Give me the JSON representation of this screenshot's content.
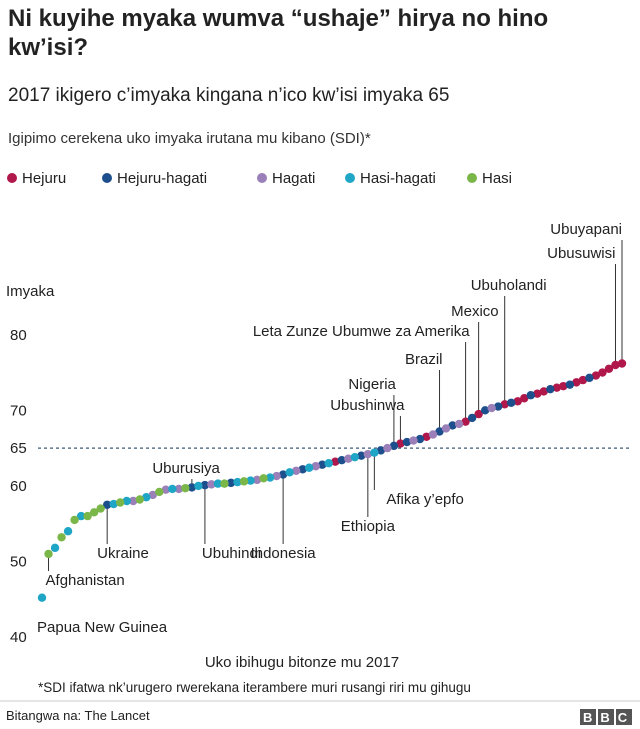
{
  "chart_data": {
    "type": "scatter",
    "title": "Ni kuyihe myaka wumva “ushaje” hirya no hino kw’isi?",
    "subtitle": "2017 ikigero c’imyaka kingana n’ico kw’isi imyaka 65",
    "legend_title": "Igipimo cerekena uko imyaka irutana mu kibano (SDI)*",
    "ylabel": "Imyaka",
    "xlabel": "Uko ibihugu bitonze mu 2017",
    "footnote": "*SDI ifatwa nk’urugero rwerekana iterambere muri rusangi riri mu gihugu",
    "source": "Bitangwa na: The Lancet",
    "logo": "BBC",
    "ylim": [
      40,
      85
    ],
    "yticks": [
      40,
      50,
      60,
      65,
      70,
      80
    ],
    "xlim": [
      1,
      90
    ],
    "refline": 65,
    "series": [
      {
        "name": "Hejuru",
        "color": "#b0174b",
        "x": [
          46,
          56,
          60,
          66,
          68,
          72,
          74,
          75,
          77,
          78,
          80,
          81,
          83,
          84,
          86,
          87,
          88,
          89,
          90
        ],
        "values": [
          63.2,
          65.6,
          66.5,
          68.5,
          69.5,
          70.8,
          71.2,
          71.6,
          72.2,
          72.5,
          73.0,
          73.2,
          73.7,
          74.0,
          74.6,
          75.0,
          75.5,
          76.0,
          76.2
        ]
      },
      {
        "name": "Hejuru-hagati",
        "color": "#1c4f8c",
        "x": [
          11,
          24,
          26,
          30,
          38,
          41,
          44,
          47,
          50,
          53,
          55,
          57,
          59,
          62,
          64,
          67,
          69,
          71,
          73,
          76,
          79,
          82,
          85
        ],
        "values": [
          57.5,
          59.8,
          60.1,
          60.4,
          61.5,
          62.2,
          62.8,
          63.4,
          64.0,
          64.7,
          65.3,
          65.8,
          66.2,
          67.2,
          68.0,
          69.0,
          70.0,
          70.5,
          71.0,
          72.0,
          72.8,
          73.4,
          74.3
        ]
      },
      {
        "name": "Hagati",
        "color": "#9a7fb8",
        "x": [
          15,
          18,
          20,
          22,
          27,
          34,
          37,
          40,
          43,
          48,
          51,
          54,
          58,
          61,
          63,
          65,
          70
        ],
        "values": [
          58.0,
          58.8,
          59.5,
          59.6,
          60.2,
          60.8,
          61.3,
          62.0,
          62.6,
          63.6,
          64.2,
          65.0,
          66.0,
          66.8,
          67.6,
          68.2,
          70.3
        ]
      },
      {
        "name": "Hasi-hagati",
        "color": "#1fa6c6",
        "x": [
          1,
          3,
          5,
          7,
          12,
          14,
          17,
          21,
          25,
          28,
          31,
          33,
          36,
          39,
          42,
          45,
          49,
          52
        ],
        "values": [
          45.2,
          51.8,
          54.0,
          56.0,
          57.6,
          58.0,
          58.5,
          59.6,
          60.0,
          60.3,
          60.5,
          60.7,
          61.1,
          61.8,
          62.4,
          63.0,
          63.8,
          64.4
        ]
      },
      {
        "name": "Hasi",
        "color": "#7ab648",
        "x": [
          2,
          4,
          6,
          8,
          9,
          10,
          13,
          16,
          19,
          23,
          29,
          32,
          35
        ],
        "values": [
          51.0,
          53.2,
          55.5,
          56.0,
          56.5,
          57.0,
          57.8,
          58.2,
          59.2,
          59.7,
          60.3,
          60.6,
          61.0
        ]
      }
    ],
    "annotations": [
      "Papua New Guinea",
      "Afghanistan",
      "Ukraine",
      "Uburusiya",
      "Ubuhindi",
      "Indonesia",
      "Ethiopia",
      "Afika y’epfo",
      "Nigeria",
      "Ubushinwa",
      "Brazil",
      "Leta Zunze Ubumwe za Amerika",
      "Mexico",
      "Ubuholandi",
      "Ubusuwisi",
      "Ubuyapani"
    ]
  }
}
